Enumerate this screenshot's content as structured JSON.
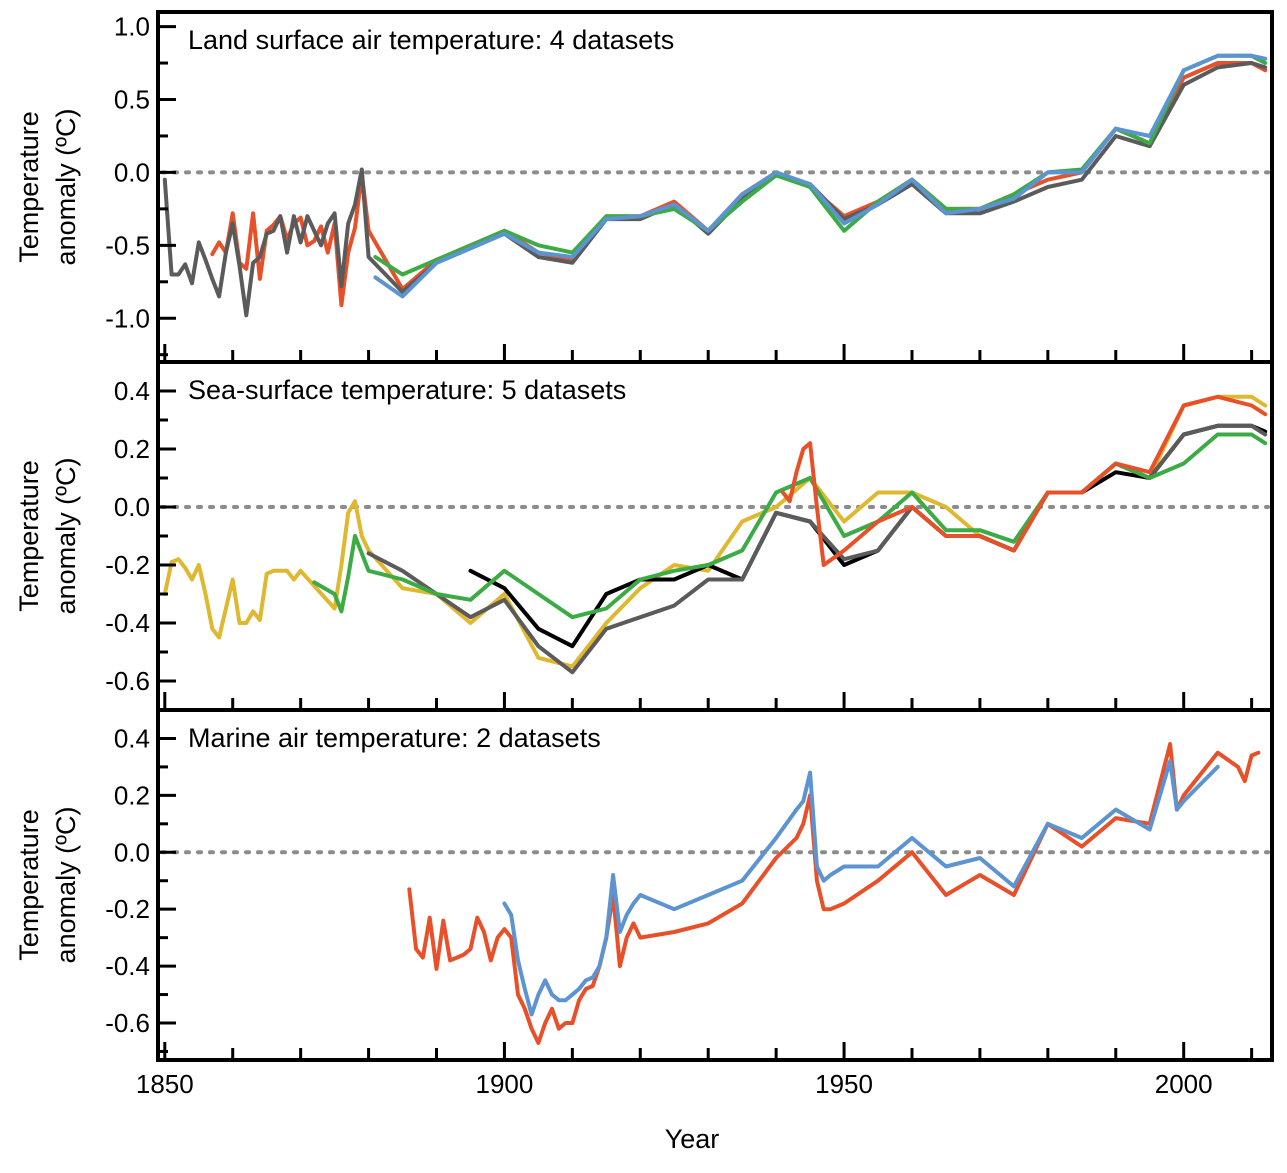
{
  "figure": {
    "xlabel": "Year",
    "x_ticks": [
      1850,
      1900,
      1950,
      2000
    ],
    "colors": {
      "red": "#e8502a",
      "dark_gray": "#5b5b5b",
      "green": "#3cab45",
      "blue": "#5b94d0",
      "yellow": "#dfb830",
      "black": "#000000",
      "zero_line": "#8c8c8c"
    }
  },
  "chart_data": [
    {
      "type": "line",
      "title": "Land surface air temperature: 4 datasets",
      "ylabel": [
        "Temperature",
        "anomaly (ºC)"
      ],
      "xlim": [
        1849,
        2013
      ],
      "ylim": [
        -1.3,
        1.1
      ],
      "y_ticks": [
        1.0,
        0.5,
        0.0,
        -0.5,
        -1.0
      ],
      "y_tick_labels": [
        "1.0",
        "0.5",
        "0.0",
        "-0.5",
        "-1.0"
      ],
      "zero_line": true,
      "series": [
        {
          "color_key": "red",
          "x": [
            1857,
            1858,
            1859,
            1860,
            1861,
            1862,
            1863,
            1864,
            1865,
            1866,
            1867,
            1868,
            1869,
            1870,
            1871,
            1872,
            1873,
            1874,
            1875,
            1876,
            1877,
            1878,
            1879,
            1880,
            1885,
            1890,
            1895,
            1900,
            1905,
            1910,
            1915,
            1920,
            1925,
            1930,
            1935,
            1940,
            1945,
            1950,
            1955,
            1960,
            1965,
            1970,
            1975,
            1980,
            1985,
            1990,
            1995,
            2000,
            2005,
            2010,
            2012
          ],
          "y": [
            -0.56,
            -0.48,
            -0.55,
            -0.28,
            -0.62,
            -0.66,
            -0.28,
            -0.73,
            -0.4,
            -0.36,
            -0.3,
            -0.46,
            -0.35,
            -0.31,
            -0.5,
            -0.47,
            -0.37,
            -0.55,
            -0.35,
            -0.91,
            -0.55,
            -0.38,
            -0.01,
            -0.4,
            -0.8,
            -0.6,
            -0.5,
            -0.4,
            -0.55,
            -0.6,
            -0.3,
            -0.3,
            -0.2,
            -0.4,
            -0.15,
            0.0,
            -0.1,
            -0.3,
            -0.2,
            -0.05,
            -0.25,
            -0.25,
            -0.15,
            -0.05,
            0.0,
            0.3,
            0.2,
            0.65,
            0.75,
            0.75,
            0.7
          ]
        },
        {
          "color_key": "dark_gray",
          "x": [
            1850,
            1851,
            1852,
            1853,
            1854,
            1855,
            1856,
            1857,
            1858,
            1859,
            1860,
            1861,
            1862,
            1863,
            1864,
            1865,
            1866,
            1867,
            1868,
            1869,
            1870,
            1871,
            1872,
            1873,
            1874,
            1875,
            1876,
            1877,
            1878,
            1879,
            1880,
            1885,
            1890,
            1895,
            1900,
            1905,
            1910,
            1915,
            1920,
            1925,
            1930,
            1935,
            1940,
            1945,
            1950,
            1955,
            1960,
            1965,
            1970,
            1975,
            1980,
            1985,
            1990,
            1995,
            2000,
            2005,
            2010,
            2012
          ],
          "y": [
            -0.05,
            -0.7,
            -0.7,
            -0.63,
            -0.76,
            -0.48,
            -0.6,
            -0.73,
            -0.85,
            -0.55,
            -0.35,
            -0.64,
            -0.98,
            -0.62,
            -0.58,
            -0.42,
            -0.4,
            -0.3,
            -0.55,
            -0.3,
            -0.48,
            -0.3,
            -0.4,
            -0.5,
            -0.35,
            -0.28,
            -0.78,
            -0.35,
            -0.22,
            0.02,
            -0.58,
            -0.82,
            -0.62,
            -0.52,
            -0.42,
            -0.58,
            -0.62,
            -0.32,
            -0.32,
            -0.22,
            -0.42,
            -0.18,
            -0.02,
            -0.08,
            -0.32,
            -0.22,
            -0.08,
            -0.28,
            -0.28,
            -0.2,
            -0.1,
            -0.05,
            0.25,
            0.18,
            0.6,
            0.72,
            0.75,
            0.72
          ]
        },
        {
          "color_key": "green",
          "x": [
            1881,
            1885,
            1890,
            1895,
            1900,
            1905,
            1910,
            1915,
            1920,
            1925,
            1930,
            1935,
            1940,
            1945,
            1950,
            1955,
            1960,
            1965,
            1970,
            1975,
            1980,
            1985,
            1990,
            1995,
            2000,
            2005,
            2010,
            2012
          ],
          "y": [
            -0.58,
            -0.7,
            -0.6,
            -0.5,
            -0.4,
            -0.5,
            -0.55,
            -0.3,
            -0.3,
            -0.25,
            -0.4,
            -0.2,
            -0.02,
            -0.1,
            -0.4,
            -0.2,
            -0.05,
            -0.25,
            -0.25,
            -0.15,
            0.0,
            0.02,
            0.3,
            0.2,
            0.7,
            0.8,
            0.8,
            0.75
          ]
        },
        {
          "color_key": "blue",
          "x": [
            1881,
            1885,
            1890,
            1895,
            1900,
            1905,
            1910,
            1915,
            1920,
            1925,
            1930,
            1935,
            1940,
            1945,
            1950,
            1955,
            1960,
            1965,
            1970,
            1975,
            1980,
            1985,
            1990,
            1995,
            2000,
            2005,
            2010,
            2012
          ],
          "y": [
            -0.72,
            -0.85,
            -0.62,
            -0.52,
            -0.42,
            -0.55,
            -0.58,
            -0.32,
            -0.3,
            -0.22,
            -0.4,
            -0.15,
            0.0,
            -0.08,
            -0.35,
            -0.22,
            -0.05,
            -0.28,
            -0.25,
            -0.18,
            0.0,
            0.0,
            0.3,
            0.25,
            0.7,
            0.8,
            0.8,
            0.78
          ]
        }
      ]
    },
    {
      "type": "line",
      "title": "Sea-surface temperature: 5 datasets",
      "ylabel": [
        "Temperature",
        "anomaly (ºC)"
      ],
      "xlim": [
        1849,
        2013
      ],
      "ylim": [
        -0.7,
        0.5
      ],
      "y_ticks": [
        0.4,
        0.2,
        0.0,
        -0.2,
        -0.4,
        -0.6
      ],
      "y_tick_labels": [
        "0.4",
        "0.2",
        "0.0",
        "-0.2",
        "-0.4",
        "-0.6"
      ],
      "zero_line": true,
      "series": [
        {
          "color_key": "yellow",
          "x": [
            1850,
            1851,
            1852,
            1853,
            1854,
            1855,
            1856,
            1857,
            1858,
            1859,
            1860,
            1861,
            1862,
            1863,
            1864,
            1865,
            1866,
            1867,
            1868,
            1869,
            1870,
            1875,
            1876,
            1877,
            1878,
            1879,
            1880,
            1885,
            1890,
            1895,
            1900,
            1905,
            1910,
            1915,
            1920,
            1925,
            1930,
            1935,
            1940,
            1945,
            1950,
            1955,
            1960,
            1965,
            1970,
            1975,
            1980,
            1985,
            1990,
            1995,
            2000,
            2005,
            2010,
            2012
          ],
          "y": [
            -0.3,
            -0.19,
            -0.18,
            -0.21,
            -0.25,
            -0.2,
            -0.3,
            -0.42,
            -0.45,
            -0.35,
            -0.25,
            -0.4,
            -0.4,
            -0.36,
            -0.39,
            -0.23,
            -0.22,
            -0.22,
            -0.22,
            -0.25,
            -0.22,
            -0.35,
            -0.2,
            -0.02,
            0.02,
            -0.1,
            -0.15,
            -0.28,
            -0.3,
            -0.4,
            -0.3,
            -0.52,
            -0.55,
            -0.4,
            -0.28,
            -0.2,
            -0.22,
            -0.05,
            0.0,
            0.1,
            -0.05,
            0.05,
            0.05,
            0.0,
            -0.1,
            -0.15,
            0.05,
            0.05,
            0.15,
            0.1,
            0.35,
            0.38,
            0.38,
            0.35
          ]
        },
        {
          "color_key": "black",
          "x": [
            1895,
            1900,
            1905,
            1910,
            1915,
            1920,
            1925,
            1930,
            1935,
            1940,
            1945,
            1950,
            1955,
            1960,
            1965,
            1970,
            1975,
            1980,
            1985,
            1990,
            1995,
            2000,
            2005,
            2010,
            2012
          ],
          "y": [
            -0.22,
            -0.28,
            -0.42,
            -0.48,
            -0.3,
            -0.25,
            -0.25,
            -0.2,
            -0.25,
            -0.02,
            -0.05,
            -0.2,
            -0.15,
            0.0,
            -0.1,
            -0.1,
            -0.15,
            0.05,
            0.05,
            0.12,
            0.1,
            0.25,
            0.28,
            0.28,
            0.26
          ]
        },
        {
          "color_key": "dark_gray",
          "x": [
            1880,
            1885,
            1890,
            1895,
            1900,
            1905,
            1910,
            1915,
            1920,
            1925,
            1930,
            1935,
            1940,
            1945,
            1950,
            1955,
            1960,
            1965,
            1970,
            1975,
            1980,
            1985,
            1990,
            1995,
            2000,
            2005,
            2010,
            2012
          ],
          "y": [
            -0.16,
            -0.22,
            -0.3,
            -0.38,
            -0.32,
            -0.48,
            -0.57,
            -0.42,
            -0.38,
            -0.34,
            -0.25,
            -0.25,
            -0.02,
            -0.05,
            -0.18,
            -0.15,
            0.0,
            -0.1,
            -0.1,
            -0.15,
            0.05,
            0.05,
            0.15,
            0.1,
            0.25,
            0.28,
            0.28,
            0.25
          ]
        },
        {
          "color_key": "green",
          "x": [
            1872,
            1875,
            1876,
            1877,
            1878,
            1880,
            1885,
            1890,
            1895,
            1900,
            1905,
            1910,
            1915,
            1920,
            1925,
            1930,
            1935,
            1940,
            1945,
            1950,
            1955,
            1960,
            1965,
            1970,
            1975,
            1980,
            1985,
            1990,
            1995,
            2000,
            2005,
            2010,
            2012
          ],
          "y": [
            -0.26,
            -0.3,
            -0.36,
            -0.24,
            -0.1,
            -0.22,
            -0.25,
            -0.3,
            -0.32,
            -0.22,
            -0.3,
            -0.38,
            -0.35,
            -0.25,
            -0.22,
            -0.2,
            -0.15,
            0.05,
            0.1,
            -0.1,
            -0.05,
            0.05,
            -0.08,
            -0.08,
            -0.12,
            0.05,
            0.05,
            0.15,
            0.1,
            0.15,
            0.25,
            0.25,
            0.22
          ]
        },
        {
          "color_key": "red",
          "x": [
            1941,
            1942,
            1943,
            1944,
            1945,
            1946,
            1947,
            1950,
            1955,
            1960,
            1965,
            1970,
            1975,
            1980,
            1985,
            1990,
            1995,
            2000,
            2005,
            2010,
            2012
          ],
          "y": [
            0.05,
            0.02,
            0.12,
            0.2,
            0.22,
            0.0,
            -0.2,
            -0.15,
            -0.05,
            0.0,
            -0.1,
            -0.1,
            -0.15,
            0.05,
            0.05,
            0.15,
            0.12,
            0.35,
            0.38,
            0.35,
            0.32
          ]
        }
      ]
    },
    {
      "type": "line",
      "title": "Marine air temperature: 2 datasets",
      "ylabel": [
        "Temperature",
        "anomaly (ºC)"
      ],
      "xlim": [
        1849,
        2013
      ],
      "ylim": [
        -0.73,
        0.5
      ],
      "y_ticks": [
        0.4,
        0.2,
        0.0,
        -0.2,
        -0.4,
        -0.6
      ],
      "y_tick_labels": [
        "0.4",
        "0.2",
        "0.0",
        "-0.2",
        "-0.4",
        "-0.6"
      ],
      "zero_line": true,
      "series": [
        {
          "color_key": "red",
          "x": [
            1886,
            1887,
            1888,
            1889,
            1890,
            1891,
            1892,
            1893,
            1894,
            1895,
            1896,
            1897,
            1898,
            1899,
            1900,
            1901,
            1902,
            1903,
            1904,
            1905,
            1906,
            1907,
            1908,
            1909,
            1910,
            1911,
            1912,
            1913,
            1914,
            1915,
            1916,
            1917,
            1918,
            1919,
            1920,
            1925,
            1930,
            1935,
            1940,
            1943,
            1944,
            1945,
            1946,
            1947,
            1948,
            1950,
            1955,
            1960,
            1965,
            1970,
            1975,
            1980,
            1985,
            1990,
            1995,
            1998,
            1999,
            2000,
            2005,
            2008,
            2009,
            2010,
            2011
          ],
          "y": [
            -0.13,
            -0.34,
            -0.37,
            -0.23,
            -0.41,
            -0.24,
            -0.38,
            -0.37,
            -0.36,
            -0.34,
            -0.23,
            -0.28,
            -0.38,
            -0.3,
            -0.27,
            -0.3,
            -0.5,
            -0.55,
            -0.62,
            -0.67,
            -0.6,
            -0.55,
            -0.62,
            -0.6,
            -0.6,
            -0.52,
            -0.48,
            -0.47,
            -0.4,
            -0.3,
            -0.15,
            -0.4,
            -0.3,
            -0.25,
            -0.3,
            -0.28,
            -0.25,
            -0.18,
            -0.02,
            0.05,
            0.1,
            0.2,
            -0.1,
            -0.2,
            -0.2,
            -0.18,
            -0.1,
            0.0,
            -0.15,
            -0.08,
            -0.15,
            0.1,
            0.02,
            0.12,
            0.1,
            0.38,
            0.15,
            0.2,
            0.35,
            0.3,
            0.25,
            0.34,
            0.35
          ]
        },
        {
          "color_key": "blue",
          "x": [
            1900,
            1901,
            1902,
            1903,
            1904,
            1905,
            1906,
            1907,
            1908,
            1909,
            1910,
            1911,
            1912,
            1913,
            1914,
            1915,
            1916,
            1917,
            1918,
            1919,
            1920,
            1925,
            1930,
            1935,
            1940,
            1943,
            1944,
            1945,
            1946,
            1947,
            1948,
            1950,
            1955,
            1960,
            1965,
            1970,
            1975,
            1980,
            1985,
            1990,
            1995,
            1998,
            1999,
            2000,
            2005
          ],
          "y": [
            -0.18,
            -0.22,
            -0.38,
            -0.48,
            -0.57,
            -0.5,
            -0.45,
            -0.5,
            -0.52,
            -0.52,
            -0.5,
            -0.48,
            -0.45,
            -0.44,
            -0.4,
            -0.3,
            -0.08,
            -0.28,
            -0.22,
            -0.18,
            -0.15,
            -0.2,
            -0.15,
            -0.1,
            0.05,
            0.15,
            0.18,
            0.28,
            -0.05,
            -0.1,
            -0.08,
            -0.05,
            -0.05,
            0.05,
            -0.05,
            -0.02,
            -0.12,
            0.1,
            0.05,
            0.15,
            0.08,
            0.32,
            0.15,
            0.18,
            0.3
          ]
        }
      ]
    }
  ]
}
